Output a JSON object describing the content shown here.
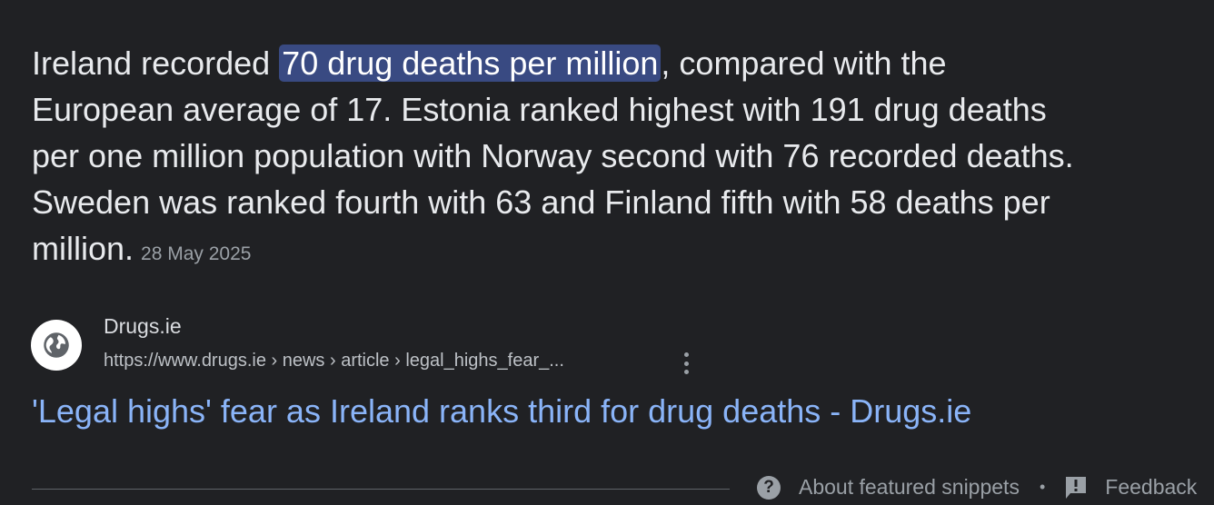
{
  "snippet": {
    "before": "Ireland recorded ",
    "highlight": "70 drug deaths per million",
    "line1_after": ", compared with the",
    "line2": "European average of 17. Estonia ranked highest with 191 drug deaths",
    "line3": "per one million population with Norway second with 76 recorded deaths.",
    "line4": "Sweden was ranked fourth with 63 and Finland fifth with 58 deaths per",
    "line5": "million.",
    "date": "28 May 2025"
  },
  "source": {
    "icon": "globe-icon",
    "site_name": "Drugs.ie",
    "url": "https://www.drugs.ie › news › article › legal_highs_fear_...",
    "title": "'Legal highs' fear as Ireland ranks third for drug deaths - Drugs.ie"
  },
  "footer": {
    "about_label": "About featured snippets",
    "separator": "•",
    "feedback_label": "Feedback"
  },
  "colors": {
    "background": "#202124",
    "highlight": "#394a82",
    "link": "#8ab4f8"
  }
}
